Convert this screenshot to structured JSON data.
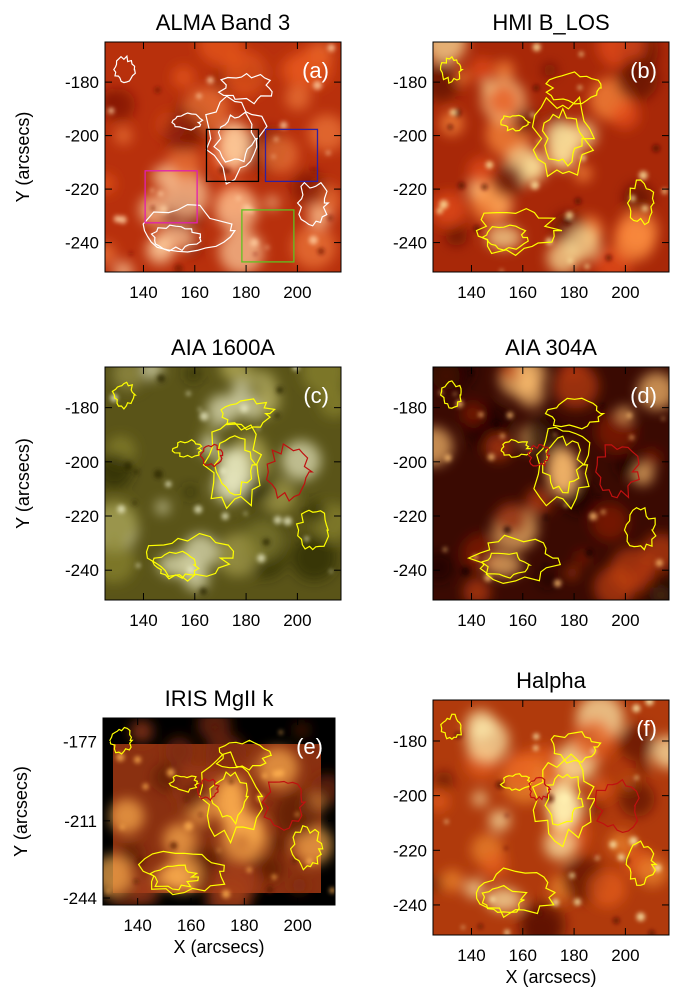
{
  "chart_data": [
    {
      "type": "image",
      "title": "ALMA Band 3",
      "panel_label": "(a)",
      "y_label": "Y (arcsecs)",
      "xlim": [
        125,
        217
      ],
      "ylim": [
        -251,
        -165
      ],
      "xticks": [
        140,
        160,
        180,
        200
      ],
      "yticks": [
        -180,
        -200,
        -220,
        -240
      ]
    },
    {
      "type": "image",
      "title": "HMI B_LOS",
      "panel_label": "(b)",
      "xlim": [
        125,
        217
      ],
      "ylim": [
        -251,
        -165
      ],
      "xticks": [
        140,
        160,
        180,
        200
      ],
      "yticks": [
        -180,
        -200,
        -220,
        -240
      ]
    },
    {
      "type": "image",
      "title": "AIA 1600A",
      "panel_label": "(c)",
      "y_label": "Y (arcsecs)",
      "xlim": [
        125,
        217
      ],
      "ylim": [
        -251,
        -165
      ],
      "xticks": [
        140,
        160,
        180,
        200
      ],
      "yticks": [
        -180,
        -200,
        -220,
        -240
      ]
    },
    {
      "type": "image",
      "title": "AIA 304A",
      "panel_label": "(d)",
      "xlim": [
        125,
        217
      ],
      "ylim": [
        -251,
        -165
      ],
      "xticks": [
        140,
        160,
        180,
        200
      ],
      "yticks": [
        -180,
        -200,
        -220,
        -240
      ]
    },
    {
      "type": "image",
      "title": "IRIS MgII k",
      "panel_label": "(e)",
      "y_label": "Y (arcsecs)",
      "x_label": "X (arcsecs)",
      "xlim": [
        127,
        214
      ],
      "ylim": [
        -247,
        -167
      ],
      "xticks": [
        140,
        160,
        180,
        200
      ],
      "yticks": [
        -177,
        -211,
        -244
      ]
    },
    {
      "type": "image",
      "title": "Halpha",
      "panel_label": "(f)",
      "x_label": "X (arcsecs)",
      "xlim": [
        125,
        217
      ],
      "ylim": [
        -251,
        -165
      ],
      "xticks": [
        140,
        160,
        180,
        200
      ],
      "yticks": [
        -180,
        -200,
        -220,
        -240
      ]
    }
  ]
}
